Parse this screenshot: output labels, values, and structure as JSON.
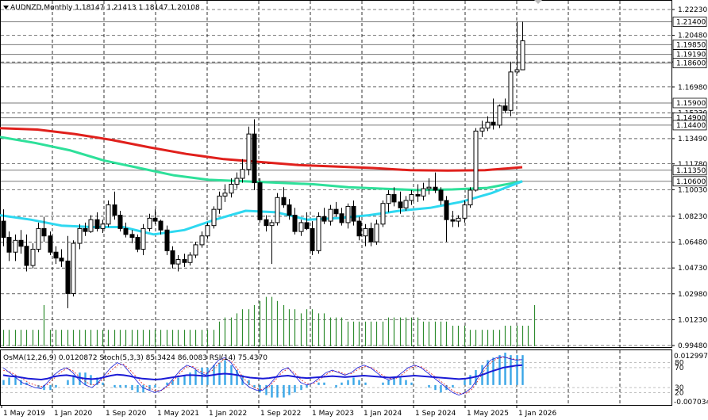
{
  "window": {
    "symbol_line": "AUDNZD,Monthly  1.18147 1.21413 1.18147 1.20108",
    "indicator_line": "OsMA(12,26,9) 0.0120872  Stoch(5,3,3) 85.3424 86.0083  RSI(14) 75.4370"
  },
  "price_axis": {
    "ticks": [
      "1.22230",
      "1.20480",
      "1.18680",
      "1.16980",
      "1.15230",
      "1.13490",
      "1.11780",
      "1.10030",
      "1.08230",
      "1.06480",
      "1.04730",
      "1.02980",
      "1.01230",
      "0.99480"
    ],
    "level_labels": [
      "1.21400",
      "1.19850",
      "1.19190",
      "1.18600",
      "1.15900",
      "1.14900",
      "1.14400",
      "1.11350",
      "1.10600"
    ],
    "ylim": [
      0.9948,
      1.2223
    ]
  },
  "sub_axis": {
    "top_label": "0.0129978",
    "bottom_label": "-0.007034",
    "level_labels": [
      "80",
      "70",
      "30",
      "20"
    ]
  },
  "time_axis": {
    "labels": [
      "1 May 2019",
      "1 Jan 2020",
      "1 Sep 2020",
      "1 May 2021",
      "1 Jan 2022",
      "1 Sep 2022",
      "1 May 2023",
      "1 Jan 2024",
      "1 Sep 2024",
      "1 May 2025",
      "1 Jan 2026"
    ]
  },
  "colors": {
    "bull_candle": "#ffffff",
    "bear_candle": "#000000",
    "ma_slow": "#e0201c",
    "ma_mid": "#2ee09a",
    "ma_fast": "#2ed8f0",
    "volume": "#2e8b2e",
    "osma": "#39a6e6",
    "stoch_main": "#1a1ad6",
    "stoch_signal": "#e0201c",
    "rsi": "#1a1ad6",
    "grid": "#000000"
  },
  "chart_data": {
    "type": "candlestick",
    "symbol": "AUDNZD",
    "timeframe": "Monthly",
    "x_range": [
      "May 2019",
      "Jan 2026"
    ],
    "candles": [
      [
        1.079,
        1.087,
        1.062,
        1.068
      ],
      [
        1.068,
        1.072,
        1.052,
        1.058
      ],
      [
        1.058,
        1.07,
        1.052,
        1.066
      ],
      [
        1.066,
        1.073,
        1.057,
        1.062
      ],
      [
        1.062,
        1.07,
        1.045,
        1.049
      ],
      [
        1.049,
        1.064,
        1.047,
        1.06
      ],
      [
        1.06,
        1.078,
        1.058,
        1.074
      ],
      [
        1.074,
        1.082,
        1.065,
        1.069
      ],
      [
        1.069,
        1.072,
        1.056,
        1.058
      ],
      [
        1.058,
        1.062,
        1.05,
        1.054
      ],
      [
        1.054,
        1.06,
        1.048,
        1.052
      ],
      [
        1.052,
        1.069,
        1.02,
        1.03
      ],
      [
        1.03,
        1.066,
        1.028,
        1.064
      ],
      [
        1.064,
        1.077,
        1.06,
        1.074
      ],
      [
        1.074,
        1.078,
        1.069,
        1.072
      ],
      [
        1.072,
        1.083,
        1.071,
        1.08
      ],
      [
        1.08,
        1.085,
        1.072,
        1.074
      ],
      [
        1.074,
        1.08,
        1.071,
        1.077
      ],
      [
        1.077,
        1.093,
        1.075,
        1.09
      ],
      [
        1.09,
        1.099,
        1.08,
        1.083
      ],
      [
        1.083,
        1.086,
        1.072,
        1.074
      ],
      [
        1.074,
        1.078,
        1.068,
        1.07
      ],
      [
        1.07,
        1.073,
        1.064,
        1.068
      ],
      [
        1.068,
        1.07,
        1.058,
        1.06
      ],
      [
        1.06,
        1.077,
        1.056,
        1.074
      ],
      [
        1.074,
        1.084,
        1.072,
        1.081
      ],
      [
        1.081,
        1.087,
        1.077,
        1.079
      ],
      [
        1.079,
        1.08,
        1.07,
        1.073
      ],
      [
        1.073,
        1.076,
        1.056,
        1.059
      ],
      [
        1.059,
        1.062,
        1.047,
        1.05
      ],
      [
        1.05,
        1.056,
        1.045,
        1.053
      ],
      [
        1.053,
        1.057,
        1.048,
        1.051
      ],
      [
        1.051,
        1.058,
        1.049,
        1.056
      ],
      [
        1.056,
        1.065,
        1.054,
        1.063
      ],
      [
        1.063,
        1.072,
        1.061,
        1.069
      ],
      [
        1.069,
        1.078,
        1.067,
        1.076
      ],
      [
        1.076,
        1.089,
        1.074,
        1.087
      ],
      [
        1.087,
        1.099,
        1.084,
        1.096
      ],
      [
        1.096,
        1.104,
        1.092,
        1.098
      ],
      [
        1.098,
        1.108,
        1.095,
        1.104
      ],
      [
        1.104,
        1.112,
        1.101,
        1.108
      ],
      [
        1.108,
        1.121,
        1.105,
        1.114
      ],
      [
        1.114,
        1.143,
        1.11,
        1.138
      ],
      [
        1.138,
        1.148,
        1.1,
        1.105
      ],
      [
        1.105,
        1.108,
        1.078,
        1.08
      ],
      [
        1.08,
        1.083,
        1.072,
        1.076
      ],
      [
        1.076,
        1.08,
        1.05,
        1.078
      ],
      [
        1.078,
        1.098,
        1.076,
        1.095
      ],
      [
        1.095,
        1.102,
        1.088,
        1.09
      ],
      [
        1.09,
        1.094,
        1.08,
        1.083
      ],
      [
        1.083,
        1.088,
        1.07,
        1.072
      ],
      [
        1.072,
        1.08,
        1.069,
        1.078
      ],
      [
        1.078,
        1.085,
        1.073,
        1.074
      ],
      [
        1.074,
        1.079,
        1.056,
        1.059
      ],
      [
        1.059,
        1.085,
        1.057,
        1.082
      ],
      [
        1.082,
        1.088,
        1.077,
        1.079
      ],
      [
        1.079,
        1.09,
        1.076,
        1.087
      ],
      [
        1.087,
        1.092,
        1.082,
        1.084
      ],
      [
        1.084,
        1.088,
        1.076,
        1.078
      ],
      [
        1.078,
        1.091,
        1.074,
        1.089
      ],
      [
        1.089,
        1.093,
        1.076,
        1.079
      ],
      [
        1.079,
        1.082,
        1.066,
        1.069
      ],
      [
        1.069,
        1.077,
        1.062,
        1.074
      ],
      [
        1.074,
        1.078,
        1.062,
        1.065
      ],
      [
        1.065,
        1.08,
        1.063,
        1.077
      ],
      [
        1.077,
        1.093,
        1.075,
        1.091
      ],
      [
        1.091,
        1.1,
        1.085,
        1.097
      ],
      [
        1.097,
        1.102,
        1.089,
        1.092
      ],
      [
        1.092,
        1.099,
        1.084,
        1.088
      ],
      [
        1.088,
        1.096,
        1.086,
        1.093
      ],
      [
        1.093,
        1.1,
        1.09,
        1.097
      ],
      [
        1.097,
        1.104,
        1.092,
        1.096
      ],
      [
        1.096,
        1.105,
        1.093,
        1.101
      ],
      [
        1.101,
        1.108,
        1.097,
        1.102
      ],
      [
        1.102,
        1.112,
        1.098,
        1.1
      ],
      [
        1.1,
        1.102,
        1.09,
        1.093
      ],
      [
        1.093,
        1.096,
        1.065,
        1.08
      ],
      [
        1.08,
        1.086,
        1.075,
        1.079
      ],
      [
        1.079,
        1.083,
        1.075,
        1.081
      ],
      [
        1.081,
        1.093,
        1.078,
        1.09
      ],
      [
        1.09,
        1.102,
        1.088,
        1.1
      ],
      [
        1.1,
        1.142,
        1.099,
        1.14
      ],
      [
        1.14,
        1.147,
        1.136,
        1.142
      ],
      [
        1.142,
        1.15,
        1.14,
        1.146
      ],
      [
        1.146,
        1.162,
        1.141,
        1.144
      ],
      [
        1.144,
        1.158,
        1.142,
        1.157
      ],
      [
        1.157,
        1.162,
        1.152,
        1.154
      ],
      [
        1.154,
        1.187,
        1.15,
        1.18
      ],
      [
        1.18,
        1.2141,
        1.179,
        1.1815
      ],
      [
        1.1815,
        1.2141,
        1.1815,
        1.2011
      ]
    ],
    "candles_format": "[open, high, low, close]",
    "moving_averages": [
      {
        "color": "#e0201c",
        "values": [
          1.142,
          1.141,
          1.138,
          1.134,
          1.129,
          1.1245,
          1.121,
          1.119,
          1.117,
          1.116,
          1.115,
          1.1135,
          1.1132,
          1.1135,
          1.1155
        ]
      },
      {
        "color": "#2ee09a",
        "values": [
          1.136,
          1.132,
          1.127,
          1.12,
          1.115,
          1.11,
          1.107,
          1.106,
          1.105,
          1.104,
          1.102,
          1.101,
          1.1,
          1.1005,
          1.1015,
          1.106
        ]
      },
      {
        "color": "#2ed8f0",
        "values": [
          1.083,
          1.08,
          1.076,
          1.075,
          1.075,
          1.07,
          1.073,
          1.08,
          1.086,
          1.085,
          1.08,
          1.081,
          1.083,
          1.086,
          1.088,
          1.092,
          1.098,
          1.106
        ]
      }
    ],
    "volume": [
      4,
      4,
      4,
      4,
      4,
      4,
      4,
      10,
      4,
      4,
      4,
      4,
      4,
      4,
      4,
      4,
      4,
      4,
      4,
      4,
      4,
      4,
      4,
      4,
      4,
      4,
      4,
      4,
      4,
      4,
      4,
      4,
      4,
      4,
      4,
      4,
      4,
      6,
      7,
      7,
      8,
      9,
      9,
      10,
      11,
      12,
      12,
      11,
      10,
      9,
      9,
      8,
      9,
      9,
      8,
      8,
      7,
      7,
      7,
      6,
      6,
      6,
      6,
      6,
      6,
      6,
      7,
      7,
      7,
      7,
      7,
      7,
      6,
      6,
      6,
      6,
      6,
      5,
      5,
      5,
      4,
      4,
      4,
      4,
      4,
      4,
      5,
      5,
      5,
      5,
      5,
      10
    ],
    "osma": [
      0.002,
      0.003,
      0.004,
      0.002,
      0.001,
      0.0,
      -0.001,
      -0.002,
      -0.002,
      -0.001,
      0.0,
      0.002,
      0.004,
      0.005,
      0.005,
      0.004,
      0.003,
      0.001,
      0.0,
      -0.001,
      -0.001,
      -0.001,
      -0.002,
      -0.003,
      -0.003,
      -0.002,
      -0.001,
      0.0,
      0.001,
      0.002,
      0.003,
      0.004,
      0.005,
      0.006,
      0.007,
      0.007,
      0.008,
      0.009,
      0.01,
      0.008,
      0.006,
      0.004,
      0.002,
      -0.001,
      -0.003,
      -0.004,
      -0.005,
      -0.005,
      -0.005,
      -0.004,
      -0.003,
      -0.002,
      -0.001,
      0.0,
      0.001,
      0.001,
      0.0,
      -0.001,
      0.001,
      0.002,
      0.003,
      0.002,
      0.001,
      0.0,
      0.0,
      0.001,
      0.002,
      0.003,
      0.003,
      0.002,
      0.001,
      0.0,
      0.0,
      -0.001,
      -0.002,
      -0.003,
      -0.002,
      -0.001,
      0.0,
      0.002,
      0.004,
      0.006,
      0.008,
      0.01,
      0.011,
      0.012,
      0.013,
      0.012,
      0.012,
      0.012
    ],
    "stochastic": {
      "main": [
        70,
        60,
        50,
        40,
        35,
        30,
        28,
        40,
        55,
        65,
        70,
        60,
        45,
        35,
        30,
        40,
        55,
        70,
        80,
        75,
        60,
        45,
        30,
        25,
        20,
        25,
        35,
        50,
        65,
        75,
        70,
        60,
        55,
        70,
        85,
        90,
        80,
        60,
        40,
        30,
        25,
        25,
        35,
        50,
        65,
        70,
        55,
        40,
        35,
        40,
        50,
        60,
        65,
        60,
        55,
        60,
        70,
        75,
        70,
        60,
        50,
        45,
        50,
        60,
        70,
        75,
        70,
        60,
        50,
        40,
        30,
        20,
        15,
        20,
        30,
        50,
        70,
        85,
        90,
        92,
        88,
        85,
        86
      ],
      "signal": [
        65,
        62,
        55,
        48,
        40,
        35,
        32,
        36,
        48,
        60,
        68,
        64,
        52,
        42,
        35,
        38,
        50,
        63,
        75,
        77,
        66,
        52,
        38,
        30,
        24,
        24,
        32,
        45,
        60,
        72,
        72,
        64,
        58,
        64,
        78,
        88,
        84,
        68,
        48,
        36,
        28,
        26,
        32,
        45,
        60,
        68,
        60,
        46,
        38,
        38,
        46,
        56,
        63,
        62,
        57,
        58,
        66,
        72,
        71,
        64,
        54,
        48,
        48,
        56,
        66,
        73,
        72,
        64,
        54,
        44,
        34,
        24,
        18,
        18,
        26,
        44,
        64,
        80,
        88,
        91,
        89,
        86,
        86
      ]
    },
    "rsi": [
      55,
      53,
      52,
      50,
      48,
      47,
      46,
      48,
      52,
      54,
      55,
      53,
      50,
      48,
      47,
      48,
      51,
      54,
      56,
      55,
      53,
      50,
      48,
      47,
      46,
      47,
      49,
      51,
      53,
      55,
      55,
      54,
      53,
      55,
      57,
      58,
      57,
      55,
      52,
      50,
      49,
      48,
      49,
      51,
      53,
      54,
      52,
      50,
      49,
      50,
      51,
      52,
      53,
      52,
      51,
      52,
      53,
      54,
      53,
      52,
      51,
      50,
      51,
      52,
      53,
      54,
      53,
      52,
      51,
      50,
      49,
      48,
      47,
      48,
      50,
      53,
      57,
      62,
      66,
      70,
      72,
      74,
      75
    ]
  }
}
